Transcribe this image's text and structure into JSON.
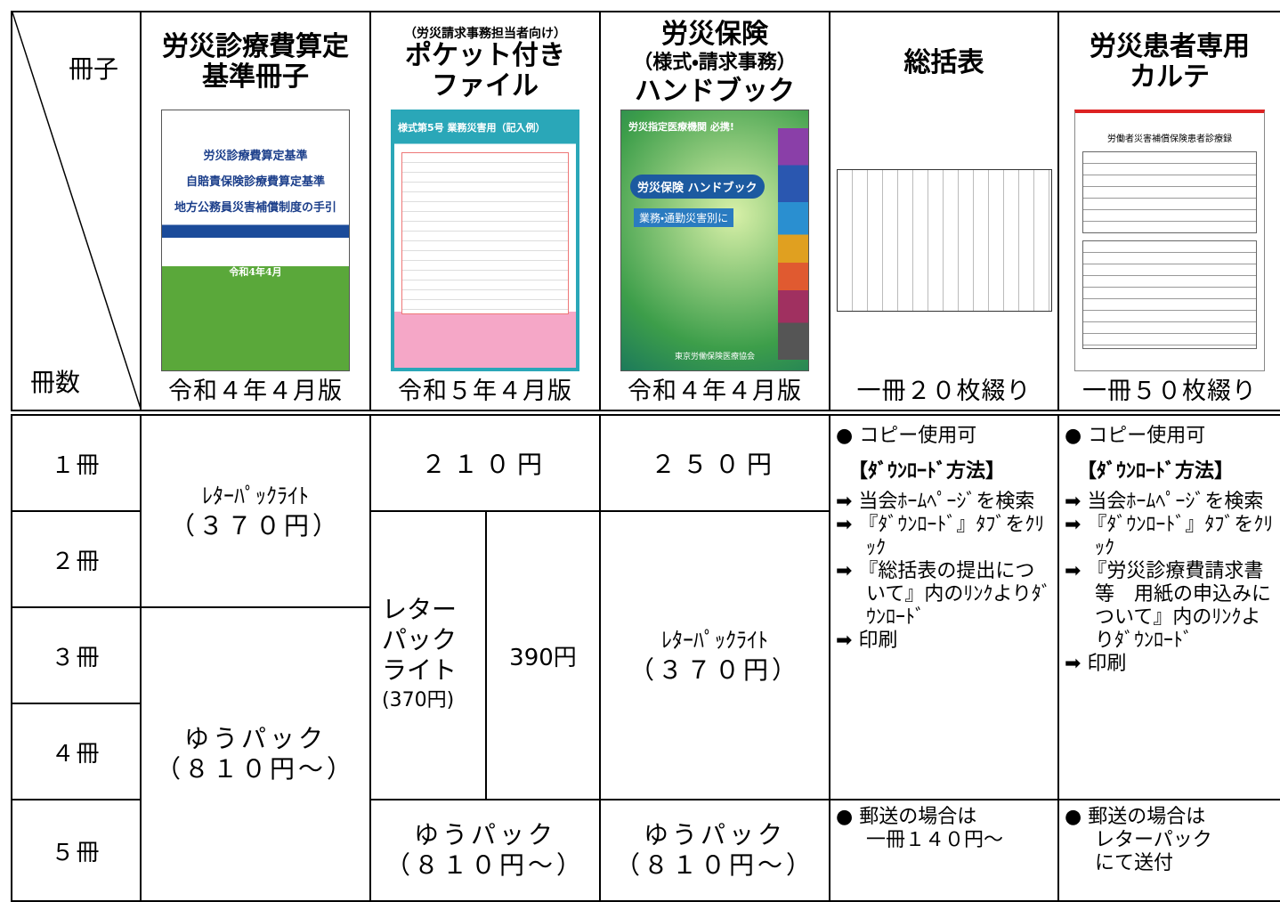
{
  "corner": {
    "top": "冊子",
    "bottom": "冊数"
  },
  "columns": [
    {
      "title": [
        "労災診療費算定",
        "基準冊子"
      ],
      "cover": [
        "労災診療費算定基準",
        "自賠責保険診療費算定基準",
        "地方公務員災害補償制度の手引",
        "令和4年4月"
      ],
      "edition": "令和４年４月版"
    },
    {
      "note": "（労災請求事務担当者向け）",
      "title": [
        "ポケット付き",
        "ファイル"
      ],
      "cover": [
        "様式第5号 業務災害用（記入例）"
      ],
      "edition": "令和５年４月版"
    },
    {
      "title": [
        "労災保険",
        "（様式・請求事務）",
        "ハンドブック"
      ],
      "cover": [
        "労災指定医療機関 必携!",
        "労災保険 ハンドブック",
        "業務・通勤災害別に",
        "東京労働保険医療協会"
      ],
      "edition": "令和４年４月版"
    },
    {
      "title": [
        "総括表"
      ],
      "edition": "一冊２０枚綴り"
    },
    {
      "title": [
        "労災患者専用",
        "カルテ"
      ],
      "cover": [
        "労働者災害補償保険患者診療録"
      ],
      "edition": "一冊５０枚綴り"
    }
  ],
  "rows": [
    "１冊",
    "２冊",
    "３冊",
    "４冊",
    "５冊"
  ],
  "cells": {
    "book_1_2": [
      "ﾚﾀｰﾊﾟｯｸﾗｲﾄ",
      "（３７０円）"
    ],
    "book_3_5": [
      "ゆうパック",
      "（８１０円～）"
    ],
    "file_1": "２１０円",
    "file_2_4_left": [
      "レター",
      "パック",
      "ライト",
      "(370円)"
    ],
    "file_2_4_right": "390円",
    "file_5": [
      "ゆうパック",
      "（８１０円～）"
    ],
    "hand_1": "２５０円",
    "hand_2_4": [
      "ﾚﾀｰﾊﾟｯｸﾗｲﾄ",
      "（３７０円）"
    ],
    "hand_5": [
      "ゆうパック",
      "（８１０円～）"
    ],
    "summary": {
      "copy": "● コピー使用可",
      "method": "【ﾀﾞｳﾝﾛｰﾄﾞ方法】",
      "steps": [
        "➡ 当会ﾎｰﾑﾍﾟｰｼﾞを検索",
        "➡ 『ﾀﾞｳﾝﾛｰﾄﾞ』ﾀﾌﾞをｸﾘｯｸ",
        "➡ 『総括表の提出について』内のﾘﾝｸよりﾀﾞｳﾝﾛｰﾄﾞ",
        "➡ 印刷"
      ],
      "mail": [
        "● 郵送の場合は",
        "一冊１４０円～"
      ]
    },
    "chart": {
      "copy": "● コピー使用可",
      "method": "【ﾀﾞｳﾝﾛｰﾄﾞ方法】",
      "steps": [
        "➡ 当会ﾎｰﾑﾍﾟｰｼﾞを検索",
        "➡ 『ﾀﾞｳﾝﾛｰﾄﾞ』ﾀﾌﾞをｸﾘｯｸ",
        "➡ 『労災診療費請求書等　用紙の申込みについて』内のﾘﾝｸよりﾀﾞｳﾝﾛｰﾄﾞ",
        "➡ 印刷"
      ],
      "mail": [
        "● 郵送の場合は",
        "レターパック",
        "にて送付"
      ]
    }
  }
}
